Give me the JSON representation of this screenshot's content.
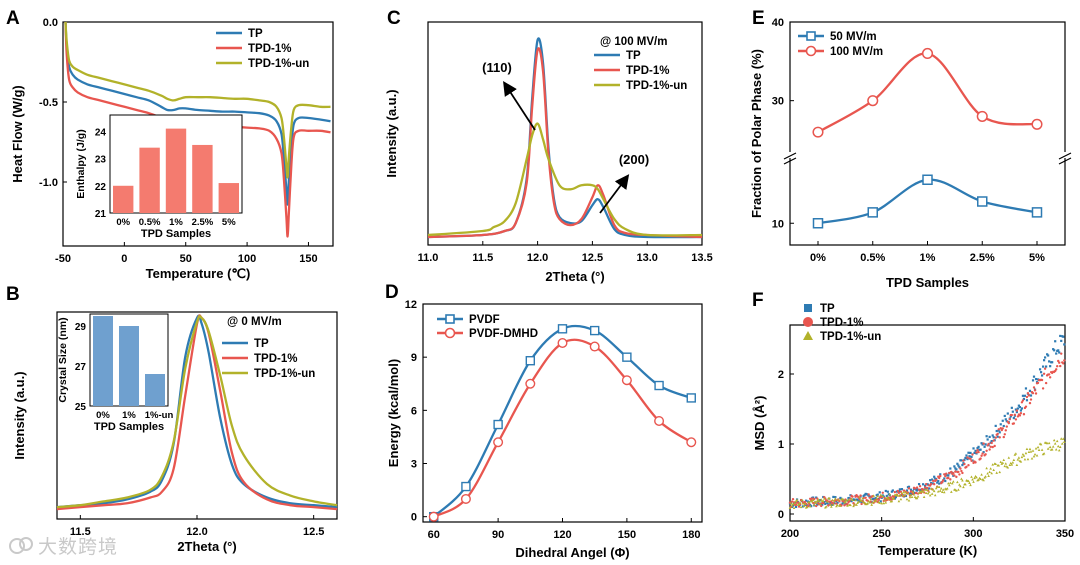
{
  "figure": {
    "watermark": "大数跨境",
    "colors": {
      "blue": "#2e7bb3",
      "red": "#e8564f",
      "olive": "#b2b22a",
      "bar_red": "#f47b6f",
      "bar_blue": "#6fa0cf"
    }
  },
  "chart_data": [
    {
      "panel": "A",
      "type": "line",
      "xlabel": "Temperature (℃)",
      "ylabel": "Heat Flow (W/g)",
      "xlim": [
        -50,
        170
      ],
      "ylim": [
        -1.4,
        0.0
      ],
      "xticks": [
        -50,
        0,
        50,
        100,
        150
      ],
      "yticks": [
        0.0,
        -0.5,
        -1.0
      ],
      "legend": "top-right",
      "series": [
        {
          "name": "TP",
          "color": "#2e7bb3",
          "x": [
            -48,
            -47,
            -45,
            -42,
            -38,
            -30,
            -20,
            -10,
            0,
            10,
            20,
            30,
            35,
            40,
            45,
            50,
            60,
            70,
            80,
            90,
            100,
            110,
            118,
            124,
            128,
            130,
            132,
            133,
            134,
            136,
            138,
            142,
            150,
            160,
            168
          ],
          "y": [
            0,
            -0.15,
            -0.28,
            -0.33,
            -0.36,
            -0.39,
            -0.41,
            -0.43,
            -0.45,
            -0.47,
            -0.49,
            -0.53,
            -0.55,
            -0.55,
            -0.54,
            -0.54,
            -0.55,
            -0.555,
            -0.56,
            -0.56,
            -0.565,
            -0.57,
            -0.585,
            -0.62,
            -0.7,
            -0.85,
            -1.05,
            -1.14,
            -1.0,
            -0.78,
            -0.64,
            -0.6,
            -0.6,
            -0.61,
            -0.62
          ]
        },
        {
          "name": "TPD-1%",
          "color": "#e8564f",
          "x": [
            -48,
            -47,
            -45,
            -42,
            -38,
            -30,
            -20,
            -10,
            0,
            10,
            20,
            30,
            35,
            40,
            45,
            50,
            60,
            70,
            80,
            90,
            100,
            110,
            118,
            124,
            128,
            130,
            132,
            133,
            134,
            136,
            138,
            142,
            150,
            160,
            168
          ],
          "y": [
            0,
            -0.2,
            -0.36,
            -0.41,
            -0.44,
            -0.47,
            -0.49,
            -0.51,
            -0.53,
            -0.55,
            -0.57,
            -0.6,
            -0.63,
            -0.64,
            -0.64,
            -0.64,
            -0.645,
            -0.65,
            -0.65,
            -0.655,
            -0.66,
            -0.665,
            -0.68,
            -0.73,
            -0.82,
            -0.98,
            -1.22,
            -1.34,
            -1.2,
            -0.9,
            -0.72,
            -0.68,
            -0.68,
            -0.68,
            -0.69
          ]
        },
        {
          "name": "TPD-1%-un",
          "color": "#b2b22a",
          "x": [
            -48,
            -47,
            -45,
            -42,
            -38,
            -30,
            -20,
            -10,
            0,
            10,
            20,
            30,
            35,
            40,
            45,
            50,
            60,
            70,
            80,
            90,
            100,
            110,
            118,
            124,
            128,
            130,
            132,
            133,
            134,
            136,
            138,
            142,
            150,
            160,
            168
          ],
          "y": [
            0,
            -0.12,
            -0.24,
            -0.28,
            -0.3,
            -0.33,
            -0.35,
            -0.37,
            -0.39,
            -0.41,
            -0.43,
            -0.46,
            -0.48,
            -0.49,
            -0.48,
            -0.47,
            -0.47,
            -0.47,
            -0.475,
            -0.48,
            -0.48,
            -0.49,
            -0.5,
            -0.53,
            -0.6,
            -0.72,
            -0.9,
            -0.97,
            -0.85,
            -0.66,
            -0.55,
            -0.52,
            -0.52,
            -0.53,
            -0.53
          ]
        }
      ],
      "inset": {
        "type": "bar",
        "xlabel": "TPD Samples",
        "ylabel": "Enthalpy (J/g)",
        "ylim": [
          21,
          24.6
        ],
        "yticks": [
          21,
          22,
          23,
          24
        ],
        "categories": [
          "0%",
          "0.5%",
          "1%",
          "2.5%",
          "5%"
        ],
        "values": [
          22.0,
          23.4,
          24.1,
          23.5,
          22.1
        ]
      }
    },
    {
      "panel": "B",
      "type": "line",
      "xlabel": "2Theta (°)",
      "ylabel": "Intensity (a.u.)",
      "xlim": [
        11.4,
        12.6
      ],
      "xticks": [
        11.5,
        12.0,
        12.5
      ],
      "annotation": "@ 0 MV/m",
      "legend": "top-right",
      "series": [
        {
          "name": "TP",
          "color": "#2e7bb3",
          "x": [
            11.4,
            11.5,
            11.6,
            11.7,
            11.8,
            11.85,
            11.9,
            11.95,
            12.0,
            12.02,
            12.05,
            12.1,
            12.15,
            12.2,
            12.3,
            12.4,
            12.5,
            12.6
          ],
          "y": [
            0.02,
            0.03,
            0.04,
            0.06,
            0.1,
            0.16,
            0.35,
            0.8,
            1.0,
            0.97,
            0.82,
            0.48,
            0.24,
            0.14,
            0.07,
            0.04,
            0.03,
            0.02
          ]
        },
        {
          "name": "TPD-1%",
          "color": "#e8564f",
          "x": [
            11.4,
            11.5,
            11.6,
            11.7,
            11.8,
            11.85,
            11.9,
            11.95,
            12.0,
            12.02,
            12.05,
            12.1,
            12.15,
            12.2,
            12.3,
            12.4,
            12.5,
            12.6
          ],
          "y": [
            0.01,
            0.02,
            0.03,
            0.04,
            0.07,
            0.1,
            0.22,
            0.6,
            0.97,
            1.0,
            0.92,
            0.62,
            0.3,
            0.15,
            0.06,
            0.03,
            0.02,
            0.01
          ]
        },
        {
          "name": "TPD-1%-un",
          "color": "#b2b22a",
          "x": [
            11.4,
            11.5,
            11.6,
            11.7,
            11.8,
            11.85,
            11.9,
            11.95,
            12.0,
            12.02,
            12.05,
            12.1,
            12.15,
            12.2,
            12.3,
            12.4,
            12.5,
            12.6
          ],
          "y": [
            0.02,
            0.03,
            0.05,
            0.07,
            0.11,
            0.18,
            0.36,
            0.74,
            0.98,
            1.0,
            0.93,
            0.7,
            0.44,
            0.29,
            0.14,
            0.08,
            0.05,
            0.03
          ]
        }
      ],
      "inset": {
        "type": "bar",
        "xlabel": "TPD Samples",
        "ylabel": "Crystal Size (nm)",
        "ylim": [
          25,
          29.6
        ],
        "yticks": [
          25,
          27,
          29
        ],
        "categories": [
          "0%",
          "1%",
          "1%-un"
        ],
        "values": [
          29.5,
          29.0,
          26.6
        ]
      }
    },
    {
      "panel": "C",
      "type": "line",
      "xlabel": "2Theta (°)",
      "ylabel": "Intensity (a.u.)",
      "xlim": [
        11.0,
        13.5
      ],
      "xticks": [
        11.0,
        11.5,
        12.0,
        12.5,
        13.0,
        13.5
      ],
      "annotation": "@ 100 MV/m",
      "legend": "top-right",
      "annotations": [
        "(110)",
        "(200)"
      ],
      "series": [
        {
          "name": "TP",
          "color": "#2e7bb3",
          "x": [
            11.0,
            11.5,
            11.7,
            11.8,
            11.9,
            11.95,
            12.0,
            12.05,
            12.1,
            12.15,
            12.2,
            12.3,
            12.4,
            12.5,
            12.55,
            12.6,
            12.7,
            12.8,
            13.0,
            13.5
          ],
          "y": [
            0.01,
            0.02,
            0.04,
            0.08,
            0.3,
            0.7,
            1.0,
            0.88,
            0.45,
            0.2,
            0.11,
            0.08,
            0.09,
            0.17,
            0.2,
            0.16,
            0.05,
            0.02,
            0.01,
            0.01
          ]
        },
        {
          "name": "TPD-1%",
          "color": "#e8564f",
          "x": [
            11.0,
            11.5,
            11.7,
            11.8,
            11.9,
            11.95,
            12.0,
            12.05,
            12.1,
            12.15,
            12.2,
            12.3,
            12.4,
            12.5,
            12.55,
            12.6,
            12.7,
            12.8,
            13.0,
            13.5
          ],
          "y": [
            0.01,
            0.02,
            0.04,
            0.08,
            0.28,
            0.66,
            0.95,
            0.84,
            0.42,
            0.18,
            0.1,
            0.07,
            0.1,
            0.21,
            0.27,
            0.22,
            0.07,
            0.03,
            0.02,
            0.01
          ]
        },
        {
          "name": "TPD-1%-un",
          "color": "#b2b22a",
          "x": [
            11.0,
            11.5,
            11.6,
            11.7,
            11.8,
            11.9,
            11.95,
            12.0,
            12.05,
            12.1,
            12.2,
            12.3,
            12.4,
            12.5,
            12.55,
            12.6,
            12.7,
            12.8,
            13.0,
            13.5
          ],
          "y": [
            0.02,
            0.04,
            0.06,
            0.09,
            0.18,
            0.4,
            0.52,
            0.58,
            0.5,
            0.4,
            0.27,
            0.25,
            0.27,
            0.27,
            0.25,
            0.2,
            0.1,
            0.05,
            0.02,
            0.02
          ]
        }
      ]
    },
    {
      "panel": "D",
      "type": "line",
      "xlabel": "Dihedral Angel (Φ)",
      "ylabel": "Energy (kcal/mol)",
      "xlim": [
        55,
        185
      ],
      "ylim": [
        -0.3,
        12
      ],
      "xticks": [
        60,
        90,
        120,
        150,
        180
      ],
      "yticks": [
        0,
        3,
        6,
        9,
        12
      ],
      "legend": "top-left",
      "series": [
        {
          "name": "PVDF",
          "color": "#2e7bb3",
          "x": [
            60,
            75,
            90,
            105,
            120,
            135,
            150,
            165,
            180
          ],
          "y": [
            0,
            1.7,
            5.2,
            8.8,
            10.6,
            10.5,
            9.0,
            7.4,
            6.7
          ]
        },
        {
          "name": "PVDF-DMHD",
          "color": "#e8564f",
          "x": [
            60,
            75,
            90,
            105,
            120,
            135,
            150,
            165,
            180
          ],
          "y": [
            0,
            1.0,
            4.2,
            7.5,
            9.8,
            9.6,
            7.7,
            5.4,
            4.2
          ]
        }
      ]
    },
    {
      "panel": "E",
      "type": "line",
      "xlabel": "TPD Samples",
      "ylabel": "Fraction of Polar Phase (%)",
      "categories": [
        "0%",
        "0.5%",
        "1%",
        "2.5%",
        "5%"
      ],
      "yticks": [
        10,
        30,
        40
      ],
      "axis_break": true,
      "legend": "top-left",
      "series": [
        {
          "name": "50 MV/m",
          "color": "#2e7bb3",
          "values": [
            10.0,
            11.0,
            14.0,
            12.0,
            11.0
          ]
        },
        {
          "name": "100 MV/m",
          "color": "#e8564f",
          "values": [
            26.0,
            30.0,
            36.0,
            28.0,
            27.0
          ]
        }
      ]
    },
    {
      "panel": "F",
      "type": "scatter",
      "xlabel": "Temperature (K)",
      "ylabel": "MSD (Å²)",
      "xlim": [
        200,
        350
      ],
      "ylim": [
        -0.1,
        2.7
      ],
      "xticks": [
        200,
        250,
        300,
        350
      ],
      "yticks": [
        0,
        1,
        2
      ],
      "legend": "top-left",
      "series": [
        {
          "name": "TP",
          "color": "#2e7bb3",
          "x": [
            200,
            210,
            220,
            230,
            240,
            250,
            260,
            270,
            280,
            290,
            300,
            305,
            310,
            315,
            320,
            325,
            330,
            335,
            340,
            345,
            350
          ],
          "y": [
            0.15,
            0.17,
            0.18,
            0.2,
            0.22,
            0.25,
            0.3,
            0.38,
            0.48,
            0.62,
            0.85,
            0.95,
            1.1,
            1.25,
            1.4,
            1.55,
            1.75,
            1.95,
            2.15,
            2.35,
            2.5
          ]
        },
        {
          "name": "TPD-1%",
          "color": "#e8564f",
          "x": [
            200,
            210,
            220,
            230,
            240,
            250,
            260,
            270,
            280,
            290,
            300,
            305,
            310,
            315,
            320,
            325,
            330,
            335,
            340,
            345,
            350
          ],
          "y": [
            0.15,
            0.16,
            0.18,
            0.19,
            0.21,
            0.24,
            0.28,
            0.35,
            0.45,
            0.58,
            0.8,
            0.9,
            1.02,
            1.15,
            1.3,
            1.45,
            1.62,
            1.8,
            1.98,
            2.15,
            2.3
          ]
        },
        {
          "name": "TPD-1%-un",
          "color": "#b2b22a",
          "x": [
            200,
            210,
            220,
            230,
            240,
            250,
            260,
            270,
            280,
            290,
            300,
            305,
            310,
            315,
            320,
            325,
            330,
            335,
            340,
            345,
            350
          ],
          "y": [
            0.14,
            0.15,
            0.16,
            0.17,
            0.19,
            0.21,
            0.24,
            0.28,
            0.33,
            0.4,
            0.5,
            0.55,
            0.62,
            0.68,
            0.75,
            0.8,
            0.86,
            0.91,
            0.95,
            0.99,
            1.02
          ]
        }
      ]
    }
  ]
}
